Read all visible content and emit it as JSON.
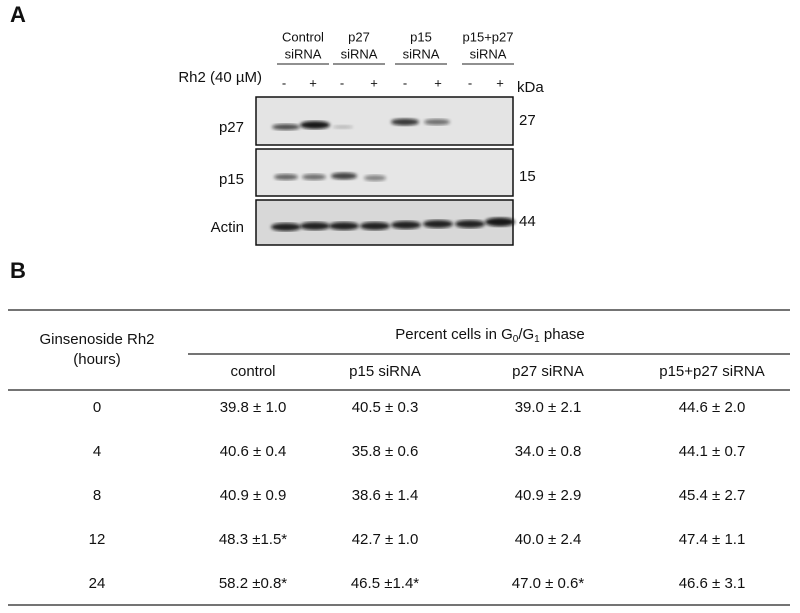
{
  "panel_a": {
    "label": "A",
    "groups": [
      [
        "Control",
        "siRNA"
      ],
      [
        "p27",
        "siRNA"
      ],
      [
        "p15",
        "siRNA"
      ],
      [
        "p15+p27",
        "siRNA"
      ]
    ],
    "treatment": "Rh2 (40 µM)",
    "lanes": [
      "-",
      "+",
      "-",
      "+",
      "-",
      "+",
      "-",
      "+"
    ],
    "unit": "kDa",
    "blots": [
      {
        "label": "p27",
        "size": "27"
      },
      {
        "label": "p15",
        "size": "15"
      },
      {
        "label": "Actin",
        "size": "44"
      }
    ]
  },
  "panel_b": {
    "label": "B",
    "table": {
      "row_header": [
        "Ginsenoside Rh2",
        "(hours)"
      ],
      "title_parts": [
        "Percent cells in G",
        "0",
        "/G",
        "1",
        " phase"
      ],
      "columns": [
        "control",
        "p15 siRNA",
        "p27 siRNA",
        "p15+p27 siRNA"
      ],
      "rows": [
        [
          "0",
          "39.8 ± 1.0",
          "40.5 ± 0.3",
          "39.0 ± 2.1",
          "44.6 ± 2.0"
        ],
        [
          "4",
          "40.6 ± 0.4",
          "35.8 ± 0.6",
          "34.0 ± 0.8",
          "44.1 ± 0.7"
        ],
        [
          "8",
          "40.9 ± 0.9",
          "38.6 ± 1.4",
          "40.9 ± 2.9",
          "45.4 ± 2.7"
        ],
        [
          "12",
          "48.3 ±1.5*",
          "42.7 ± 1.0",
          "40.0 ± 2.4",
          "47.4 ± 1.1"
        ],
        [
          "24",
          "58.2 ±0.8*",
          "46.5 ±1.4*",
          "47.0 ± 0.6*",
          "46.6 ± 3.1"
        ]
      ]
    }
  }
}
